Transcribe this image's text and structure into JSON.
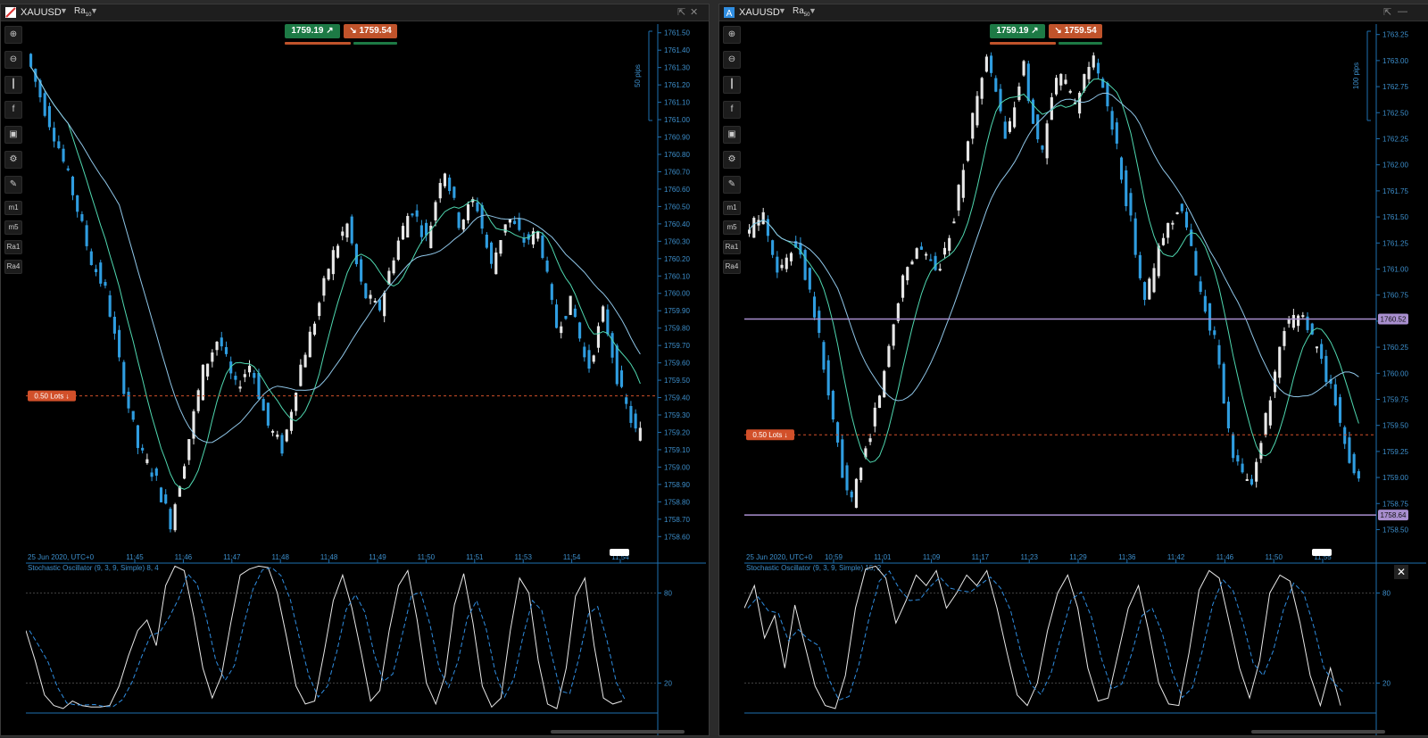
{
  "colors": {
    "bull": "#e8e8e8",
    "bear": "#2f9de0",
    "ma_fast": "#4fd8b0",
    "ma_slow": "#8fc6e8",
    "axis": "#1e6fb0",
    "axis_text": "#3d8fcc",
    "order_line": "#d2502a",
    "level_line": "#a98fcf",
    "stoch_k": "#e8e8e8",
    "stoch_d": "#2f8de0"
  },
  "toolbar_icons": [
    "zoom-in-icon",
    "zoom-out-icon",
    "chart-type-icon",
    "facebook-icon",
    "robot-icon",
    "settings-icon",
    "drawing-icon"
  ],
  "toolbar_tf": [
    "m1",
    "m5",
    "Ra1",
    "Ra4"
  ],
  "panels": [
    {
      "id": "left",
      "symbol": "XAUUSD",
      "timeframe": "Ra",
      "timeframe_sub": "10",
      "bid": "1759.19",
      "ask": "1759.54",
      "pips_label": "50 pips",
      "order_label": "0.50 Lots",
      "date_label": "25 Jun 2020, UTC+0",
      "stoch_label": "Stochastic Oscillator (9, 3, 9, Simple) 8, 4",
      "chart_data": {
        "type": "candlestick",
        "symbol": "XAUUSD",
        "ylim": [
          1758.55,
          1761.55
        ],
        "y_ticks": [
          "1761.50",
          "1761.40",
          "1761.30",
          "1761.20",
          "1761.10",
          "1761.00",
          "1760.90",
          "1760.80",
          "1760.70",
          "1760.60",
          "1760.50",
          "1760.40",
          "1760.30",
          "1760.20",
          "1760.10",
          "1760.00",
          "1759.90",
          "1759.80",
          "1759.70",
          "1759.60",
          "1759.50",
          "1759.40",
          "1759.30",
          "1759.20",
          "1759.10",
          "1759.00",
          "1758.90",
          "1758.80",
          "1758.70",
          "1758.60"
        ],
        "x_ticks": [
          "11:45",
          "11:46",
          "11:47",
          "11:48",
          "11:48",
          "11:49",
          "11:50",
          "11:51",
          "11:53",
          "11:54",
          "11:54"
        ],
        "order_price": 1759.41,
        "path": [
          1761.38,
          1761.1,
          1760.85,
          1760.55,
          1760.2,
          1760.0,
          1759.5,
          1759.1,
          1758.95,
          1758.68,
          1759.1,
          1759.55,
          1759.75,
          1759.45,
          1759.6,
          1759.25,
          1759.1,
          1759.55,
          1759.85,
          1760.2,
          1760.4,
          1760.0,
          1759.9,
          1760.25,
          1760.5,
          1760.3,
          1760.75,
          1760.4,
          1760.55,
          1760.15,
          1760.45,
          1760.3,
          1760.35,
          1759.8,
          1759.95,
          1759.55,
          1759.9,
          1759.45,
          1759.2
        ],
        "candle_count": 132,
        "stoch_levels": [
          80,
          20
        ],
        "stoch_k": [
          55,
          35,
          12,
          5,
          3,
          8,
          5,
          4,
          4,
          5,
          18,
          38,
          55,
          62,
          45,
          85,
          98,
          95,
          65,
          30,
          10,
          25,
          60,
          92,
          96,
          98,
          97,
          80,
          50,
          18,
          6,
          8,
          40,
          75,
          92,
          70,
          40,
          8,
          15,
          55,
          85,
          95,
          62,
          20,
          6,
          25,
          72,
          93,
          60,
          18,
          4,
          10,
          55,
          90,
          80,
          35,
          6,
          3,
          30,
          78,
          90,
          45,
          10,
          6,
          8
        ]
      }
    },
    {
      "id": "right",
      "symbol": "XAUUSD",
      "timeframe": "Ra",
      "timeframe_sub": "50",
      "bid": "1759.19",
      "ask": "1759.54",
      "pips_label": "100 pips",
      "order_label": "0.50 Lots",
      "date_label": "25 Jun 2020, UTC+0",
      "stoch_label": "Stochastic Oscillator (9, 3, 9, Simple) 15, 2",
      "level_high": "1760.52",
      "level_low": "1758.64",
      "chart_data": {
        "type": "candlestick",
        "symbol": "XAUUSD",
        "ylim": [
          1758.35,
          1763.35
        ],
        "y_ticks": [
          "1763.25",
          "1763.00",
          "1762.75",
          "1762.50",
          "1762.25",
          "1762.00",
          "1761.75",
          "1761.50",
          "1761.25",
          "1761.00",
          "1760.75",
          "1760.50",
          "1760.25",
          "1760.00",
          "1759.75",
          "1759.50",
          "1759.25",
          "1759.00",
          "1758.75",
          "1758.50"
        ],
        "x_ticks": [
          "10:59",
          "11:01",
          "11:09",
          "11:17",
          "11:23",
          "11:29",
          "11:36",
          "11:42",
          "11:46",
          "11:50",
          "11:55"
        ],
        "order_price": 1759.41,
        "level_high": 1760.52,
        "level_low": 1758.64,
        "path": [
          1761.3,
          1761.55,
          1760.95,
          1761.3,
          1760.6,
          1759.6,
          1758.7,
          1759.3,
          1760.0,
          1760.9,
          1761.25,
          1760.95,
          1761.5,
          1762.4,
          1763.05,
          1762.2,
          1762.95,
          1762.05,
          1762.9,
          1762.55,
          1763.05,
          1762.45,
          1761.6,
          1760.7,
          1761.3,
          1761.65,
          1760.9,
          1760.3,
          1759.2,
          1758.9,
          1759.6,
          1760.4,
          1760.6,
          1760.15,
          1759.7,
          1759.0
        ],
        "candle_count": 132,
        "stoch_levels": [
          80,
          20
        ],
        "stoch_k": [
          70,
          85,
          50,
          65,
          30,
          72,
          45,
          18,
          5,
          3,
          25,
          70,
          96,
          98,
          90,
          60,
          75,
          92,
          85,
          95,
          70,
          80,
          92,
          85,
          95,
          70,
          40,
          12,
          5,
          20,
          55,
          80,
          92,
          70,
          30,
          8,
          10,
          40,
          70,
          85,
          55,
          20,
          6,
          5,
          40,
          82,
          95,
          90,
          60,
          30,
          10,
          35,
          80,
          92,
          88,
          60,
          25,
          5,
          30,
          5
        ]
      }
    }
  ]
}
